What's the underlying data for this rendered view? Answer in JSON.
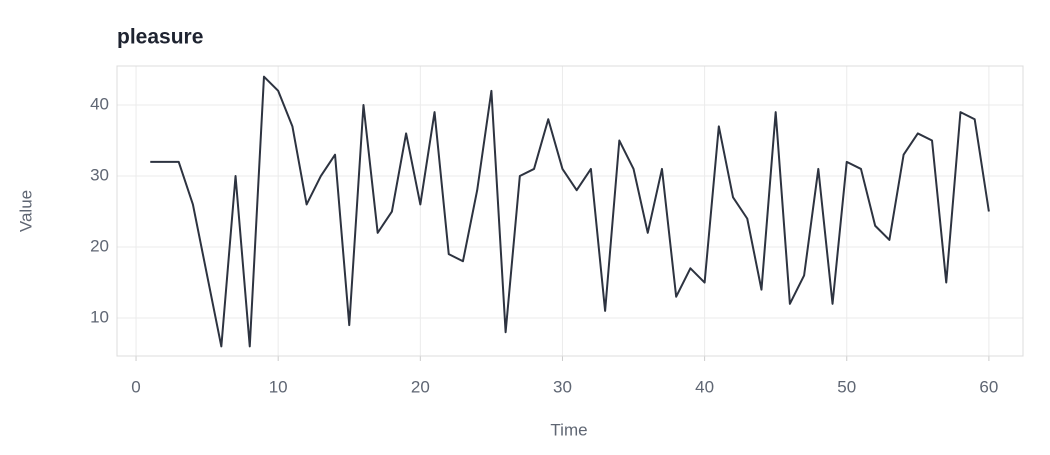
{
  "chart_data": {
    "type": "line",
    "title": "pleasure",
    "xlabel": "Time",
    "ylabel": "Value",
    "x": [
      1,
      2,
      3,
      4,
      5,
      6,
      7,
      8,
      9,
      10,
      11,
      12,
      13,
      14,
      15,
      16,
      17,
      18,
      19,
      20,
      21,
      22,
      23,
      24,
      25,
      26,
      27,
      28,
      29,
      30,
      31,
      32,
      33,
      34,
      35,
      36,
      37,
      38,
      39,
      40,
      41,
      42,
      43,
      44,
      45,
      46,
      47,
      48,
      49,
      50,
      51,
      52,
      53,
      54,
      55,
      56,
      57,
      58,
      59,
      60
    ],
    "series": [
      {
        "name": "pleasure",
        "color": "#2d3340",
        "values": [
          32,
          32,
          32,
          26,
          16,
          6,
          30,
          6,
          44,
          42,
          37,
          26,
          30,
          33,
          9,
          40,
          22,
          25,
          36,
          26,
          39,
          19,
          18,
          28,
          42,
          8,
          30,
          31,
          38,
          31,
          28,
          31,
          11,
          35,
          31,
          22,
          31,
          13,
          17,
          15,
          37,
          27,
          24,
          14,
          39,
          12,
          16,
          31,
          12,
          32,
          31,
          23,
          21,
          33,
          36,
          35,
          15,
          39,
          38,
          25
        ]
      }
    ],
    "xlim": [
      -1.34,
      62.4
    ],
    "ylim": [
      4.65,
      45.5
    ],
    "xticks": [
      0,
      10,
      20,
      30,
      40,
      50,
      60
    ],
    "yticks": [
      10,
      20,
      30,
      40
    ],
    "grid": true
  }
}
